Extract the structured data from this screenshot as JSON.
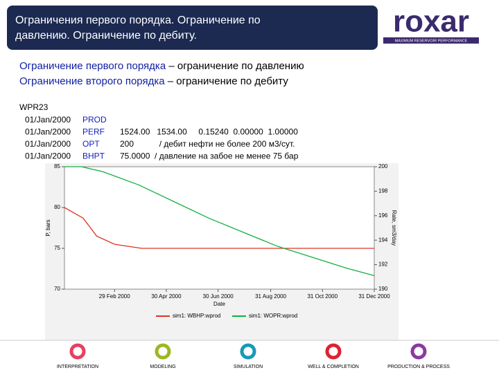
{
  "header": {
    "title_lines": [
      "Ограничения первого порядка. Ограничение по",
      "давлению. Ограничение по дебиту."
    ]
  },
  "logo": {
    "name": "roxar",
    "tagline": "MAXIMUM RESERVOIR PERFORMANCE"
  },
  "bullets": [
    [
      "Ограничение первого порядка",
      " – ограничение по давлению"
    ],
    [
      "Ограничение второго порядка",
      " – ограничение по дебиту"
    ]
  ],
  "code": {
    "keyword": "WPR23",
    "rows": [
      [
        "01/Jan/2000",
        "PROD",
        ""
      ],
      [
        "01/Jan/2000",
        "PERF",
        "1524.00   1534.00     0.15240  0.00000  1.00000"
      ],
      [
        "01/Jan/2000",
        "OPT",
        "200           / дебит нефти не более 200 м3/сут."
      ],
      [
        "01/Jan/2000",
        "BHPT",
        "75.0000  / давление на забое не менее 75 бар"
      ]
    ]
  },
  "chart_data": {
    "type": "line",
    "xlabel": "Date",
    "ylabel": "P, bars",
    "y2label": "Rate, sm3/day",
    "xlim": [
      "2000-01-01",
      "2000-12-31"
    ],
    "xticks": [
      {
        "value": "2000-02-29",
        "label": "29 Feb 2000"
      },
      {
        "value": "2000-04-30",
        "label": "30 Apr 2000"
      },
      {
        "value": "2000-06-30",
        "label": "30 Jun 2000"
      },
      {
        "value": "2000-08-31",
        "label": "31 Aug 2000"
      },
      {
        "value": "2000-10-31",
        "label": "31 Oct 2000"
      },
      {
        "value": "2000-12-31",
        "label": "31 Dec 2000"
      }
    ],
    "ylim": [
      70,
      85
    ],
    "yticks": [
      70,
      75,
      80,
      85
    ],
    "y2lim": [
      190,
      200
    ],
    "y2ticks": [
      190,
      192,
      194,
      196,
      198,
      200
    ],
    "series": [
      {
        "name": "sim1: WBHP:wprod",
        "color": "#e03020",
        "x": [
          "2000-01-01",
          "2000-01-23",
          "2000-02-08",
          "2000-02-29",
          "2000-04-01",
          "2000-12-31"
        ],
        "values": [
          80,
          78.7,
          76.5,
          75.5,
          75,
          75
        ]
      },
      {
        "name": "sim1: WOPR:wprod",
        "color": "#10b040",
        "axis": "y2",
        "x": [
          "2000-01-01",
          "2000-01-21",
          "2000-02-15",
          "2000-03-29",
          "2000-06-19",
          "2000-09-08",
          "2000-11-29",
          "2000-12-31"
        ],
        "values": [
          200,
          200,
          199.6,
          198.5,
          195.8,
          193.5,
          191.7,
          191.1
        ]
      }
    ]
  },
  "footer": [
    "INTERPRETATION",
    "MODELING",
    "SIMULATION",
    "WELL & COMPLETION",
    "PRODUCTION & PROCESS"
  ]
}
